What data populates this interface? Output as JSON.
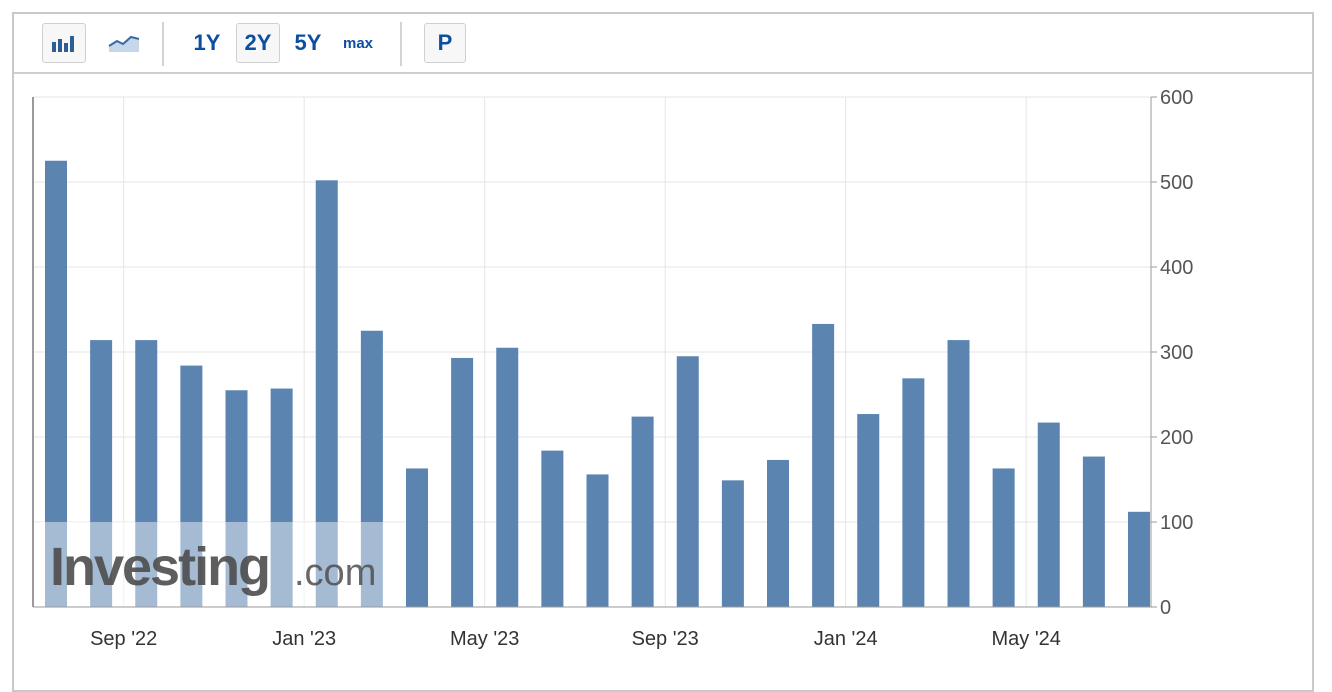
{
  "toolbar": {
    "chart_type_bar_icon": "bar-chart-icon",
    "chart_type_line_icon": "line-chart-icon",
    "range_1y": "1Y",
    "range_2y": "2Y",
    "range_5y": "5Y",
    "range_max": "max",
    "p_button": "P"
  },
  "watermark": {
    "brand": "Investing",
    "suffix": ".com"
  },
  "colors": {
    "bar": "#5b84b1",
    "grid": "#e6e6e6",
    "accent": "#0d4f9f"
  },
  "chart_data": {
    "type": "bar",
    "categories": [
      "Aug '22",
      "Sep '22",
      "Oct '22",
      "Nov '22",
      "Dec '22",
      "Jan '23",
      "Feb '23",
      "Mar '23",
      "Apr '23",
      "May '23",
      "Jun '23",
      "Jul '23",
      "Aug '23",
      "Sep '23",
      "Oct '23",
      "Nov '23",
      "Dec '23",
      "Jan '24",
      "Feb '24",
      "Mar '24",
      "Apr '24",
      "May '24",
      "Jun '24",
      "Jul '24",
      "Aug '24"
    ],
    "values": [
      525,
      314,
      314,
      284,
      255,
      257,
      502,
      325,
      163,
      293,
      305,
      184,
      156,
      224,
      295,
      149,
      173,
      333,
      227,
      269,
      314,
      163,
      217,
      177,
      112
    ],
    "x_tick_labels": [
      "Sep '22",
      "Jan '23",
      "May '23",
      "Sep '23",
      "Jan '24",
      "May '24"
    ],
    "y_tick_labels": [
      "0",
      "100",
      "200",
      "300",
      "400",
      "500",
      "600"
    ],
    "ylim": [
      0,
      600
    ],
    "y_axis_side": "right",
    "grid": true,
    "title": "",
    "xlabel": "",
    "ylabel": ""
  }
}
